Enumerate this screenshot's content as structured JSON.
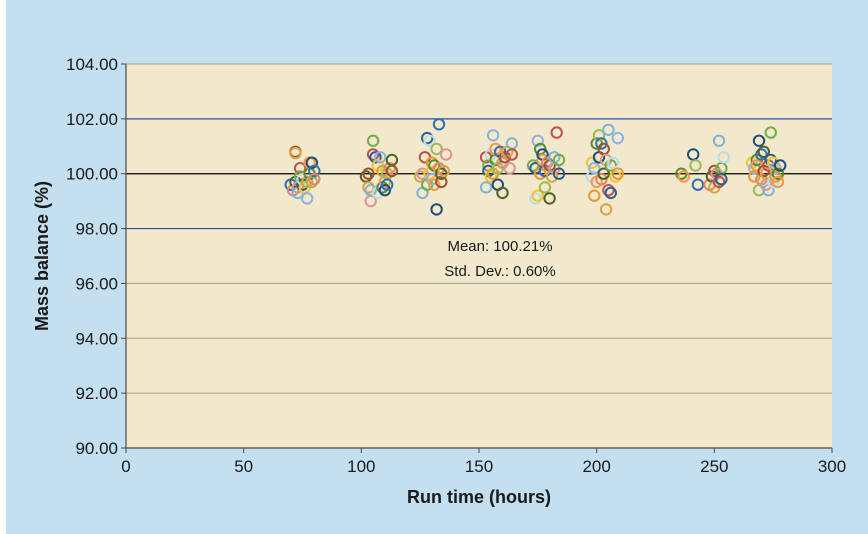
{
  "colors": {
    "background": "#c3dff0",
    "plot_area": "#f2e8cc",
    "major_gridline": "#2b4ca0",
    "minor_gridline": "#a7a08c",
    "mean_line": "#000000",
    "axis": "#4a4a4a"
  },
  "chart_data": {
    "type": "scatter",
    "title": "",
    "xlabel": "Run time (hours)",
    "ylabel": "Mass balance (%)",
    "xlim": [
      0,
      300
    ],
    "ylim": [
      90,
      104
    ],
    "x_ticks": [
      0,
      50,
      100,
      150,
      200,
      250,
      300
    ],
    "x_tick_labels": [
      "0",
      "50",
      "100",
      "150",
      "200",
      "250",
      "300"
    ],
    "y_ticks": [
      90,
      92,
      94,
      96,
      98,
      100,
      102,
      104
    ],
    "y_tick_labels": [
      "90.00",
      "92.00",
      "94.00",
      "96.00",
      "98.00",
      "100.00",
      "102.00",
      "104.00"
    ],
    "grid": true,
    "highlighted_gridlines": [
      98,
      100,
      102
    ],
    "mean_line_y": 100,
    "marker": "open-circle",
    "marker_colors": [
      "#2f6fb3",
      "#e69a2e",
      "#6fae45",
      "#a0522d",
      "#1f4e79",
      "#f4c430",
      "#7fb3d5",
      "#e2876b",
      "#5b8c2a",
      "#2e5f8a",
      "#d9a441",
      "#9bbb59",
      "#8db3e2",
      "#c0504d",
      "#4f6228",
      "#f79646",
      "#b7dee8",
      "#d99694"
    ],
    "annotations": [
      "Mean: 100.21%",
      "Std. Dev.: 0.60%"
    ],
    "points": [
      [
        70,
        99.6
      ],
      [
        71,
        99.4
      ],
      [
        72,
        99.7
      ],
      [
        72,
        100.8
      ],
      [
        72,
        100.75
      ],
      [
        73,
        99.5
      ],
      [
        73,
        99.3
      ],
      [
        74,
        100.2
      ],
      [
        74,
        99.9
      ],
      [
        75,
        99.6
      ],
      [
        75,
        99.8
      ],
      [
        76,
        99.5
      ],
      [
        77,
        99.1
      ],
      [
        77,
        99.7
      ],
      [
        78,
        100.0
      ],
      [
        78,
        100.4
      ],
      [
        79,
        100.4
      ],
      [
        79,
        99.7
      ],
      [
        80,
        100.1
      ],
      [
        80,
        99.8
      ],
      [
        102,
        99.9
      ],
      [
        103,
        100.0
      ],
      [
        103,
        99.5
      ],
      [
        104,
        99.0
      ],
      [
        104,
        99.4
      ],
      [
        105,
        100.7
      ],
      [
        105,
        101.2
      ],
      [
        106,
        100.6
      ],
      [
        107,
        99.3
      ],
      [
        107,
        100.3
      ],
      [
        108,
        100.6
      ],
      [
        109,
        100.1
      ],
      [
        109,
        99.5
      ],
      [
        110,
        99.7
      ],
      [
        110,
        99.4
      ],
      [
        111,
        100.0
      ],
      [
        111,
        99.6
      ],
      [
        112,
        100.2
      ],
      [
        113,
        100.5
      ],
      [
        113,
        100.1
      ],
      [
        125,
        99.9
      ],
      [
        126,
        100.0
      ],
      [
        126,
        99.3
      ],
      [
        127,
        100.6
      ],
      [
        128,
        99.6
      ],
      [
        128,
        101.3
      ],
      [
        129,
        101.2
      ],
      [
        129,
        100.0
      ],
      [
        130,
        99.8
      ],
      [
        130,
        100.4
      ],
      [
        131,
        100.3
      ],
      [
        131,
        99.6
      ],
      [
        132,
        98.7
      ],
      [
        132,
        100.9
      ],
      [
        133,
        101.8
      ],
      [
        133,
        100.2
      ],
      [
        134,
        100.0
      ],
      [
        134,
        99.7
      ],
      [
        135,
        100.1
      ],
      [
        136,
        100.7
      ],
      [
        153,
        99.5
      ],
      [
        153,
        100.6
      ],
      [
        154,
        100.3
      ],
      [
        154,
        100.1
      ],
      [
        155,
        100.7
      ],
      [
        155,
        99.9
      ],
      [
        156,
        101.4
      ],
      [
        156,
        100.0
      ],
      [
        157,
        100.5
      ],
      [
        157,
        100.9
      ],
      [
        158,
        99.6
      ],
      [
        158,
        100.2
      ],
      [
        159,
        100.8
      ],
      [
        160,
        100.4
      ],
      [
        160,
        99.3
      ],
      [
        161,
        100.6
      ],
      [
        162,
        100.8
      ],
      [
        163,
        100.2
      ],
      [
        164,
        101.1
      ],
      [
        164,
        100.7
      ],
      [
        173,
        100.3
      ],
      [
        174,
        100.2
      ],
      [
        174,
        99.1
      ],
      [
        175,
        99.2
      ],
      [
        175,
        101.2
      ],
      [
        176,
        100.0
      ],
      [
        176,
        100.9
      ],
      [
        177,
        100.5
      ],
      [
        177,
        100.7
      ],
      [
        178,
        99.5
      ],
      [
        178,
        100.1
      ],
      [
        179,
        100.4
      ],
      [
        180,
        99.1
      ],
      [
        180,
        100.3
      ],
      [
        181,
        99.9
      ],
      [
        182,
        100.2
      ],
      [
        182,
        100.6
      ],
      [
        183,
        101.5
      ],
      [
        184,
        100.5
      ],
      [
        184,
        100.0
      ],
      [
        198,
        99.9
      ],
      [
        198,
        100.4
      ],
      [
        199,
        100.2
      ],
      [
        199,
        99.2
      ],
      [
        200,
        101.1
      ],
      [
        200,
        99.7
      ],
      [
        201,
        100.6
      ],
      [
        201,
        101.4
      ],
      [
        202,
        101.1
      ],
      [
        202,
        99.8
      ],
      [
        203,
        100.0
      ],
      [
        203,
        100.9
      ],
      [
        204,
        98.7
      ],
      [
        204,
        100.5
      ],
      [
        205,
        101.6
      ],
      [
        205,
        99.4
      ],
      [
        206,
        100.3
      ],
      [
        206,
        99.3
      ],
      [
        207,
        100.4
      ],
      [
        208,
        99.9
      ],
      [
        209,
        101.3
      ],
      [
        209,
        100.0
      ],
      [
        236,
        100.0
      ],
      [
        237,
        99.9
      ],
      [
        241,
        100.7
      ],
      [
        242,
        100.3
      ],
      [
        243,
        99.6
      ],
      [
        248,
        99.6
      ],
      [
        249,
        99.9
      ],
      [
        250,
        100.1
      ],
      [
        250,
        99.5
      ],
      [
        251,
        100.0
      ],
      [
        252,
        101.2
      ],
      [
        252,
        99.7
      ],
      [
        253,
        100.2
      ],
      [
        253,
        99.8
      ],
      [
        254,
        100.6
      ],
      [
        266,
        100.4
      ],
      [
        267,
        100.2
      ],
      [
        267,
        99.9
      ],
      [
        268,
        100.5
      ],
      [
        268,
        100.3
      ],
      [
        269,
        101.2
      ],
      [
        269,
        99.4
      ],
      [
        270,
        100.7
      ],
      [
        270,
        99.8
      ],
      [
        271,
        100.8
      ],
      [
        271,
        100.1
      ],
      [
        272,
        100.0
      ],
      [
        272,
        99.6
      ],
      [
        273,
        99.4
      ],
      [
        273,
        100.3
      ],
      [
        274,
        101.5
      ],
      [
        274,
        100.5
      ],
      [
        275,
        99.7
      ],
      [
        275,
        100.4
      ],
      [
        276,
        100.2
      ],
      [
        276,
        99.9
      ],
      [
        277,
        100.0
      ],
      [
        277,
        99.7
      ],
      [
        278,
        100.3
      ]
    ]
  }
}
